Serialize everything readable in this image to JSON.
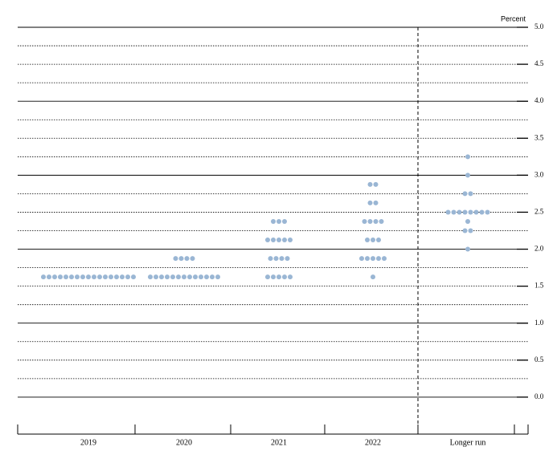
{
  "chart_data": {
    "type": "dot",
    "y_label": "Percent",
    "categories": [
      "2019",
      "2020",
      "2021",
      "2022",
      "Longer run"
    ],
    "dots": [
      [
        {
          "value": 1.625,
          "count": 17
        }
      ],
      [
        {
          "value": 1.875,
          "count": 4
        },
        {
          "value": 1.625,
          "count": 13
        }
      ],
      [
        {
          "value": 2.375,
          "count": 3
        },
        {
          "value": 2.125,
          "count": 5
        },
        {
          "value": 1.875,
          "count": 4
        },
        {
          "value": 1.625,
          "count": 5
        }
      ],
      [
        {
          "value": 2.875,
          "count": 2
        },
        {
          "value": 2.625,
          "count": 2
        },
        {
          "value": 2.375,
          "count": 4
        },
        {
          "value": 2.125,
          "count": 3
        },
        {
          "value": 1.875,
          "count": 5
        },
        {
          "value": 1.625,
          "count": 1
        }
      ],
      [
        {
          "value": 3.25,
          "count": 1
        },
        {
          "value": 3,
          "count": 1
        },
        {
          "value": 2.75,
          "count": 2
        },
        {
          "value": 2.5,
          "count": 8
        },
        {
          "value": 2.375,
          "count": 1
        },
        {
          "value": 2.25,
          "count": 2
        },
        {
          "value": 2,
          "count": 1
        }
      ]
    ],
    "color": "#9ab6d4",
    "ylim": [
      -0.5,
      5
    ],
    "yticks": [
      {
        "value": 0,
        "label": "0.0"
      },
      0.5,
      {
        "value": 1,
        "label": "1.0"
      },
      1.5,
      {
        "value": 2,
        "label": "2.0"
      },
      2.5,
      {
        "value": 3,
        "label": "3.0"
      },
      3.5,
      {
        "value": 4,
        "label": "4.0"
      },
      4.5,
      {
        "value": 5,
        "label": "5.0"
      }
    ],
    "ygrid": [
      0,
      0.25,
      0.5,
      0.75,
      1,
      1.25,
      1.5,
      1.75,
      2,
      2.25,
      2.5,
      2.75,
      3,
      3.25,
      3.5,
      3.75,
      4,
      4.25,
      4.5,
      4.75,
      5
    ]
  }
}
